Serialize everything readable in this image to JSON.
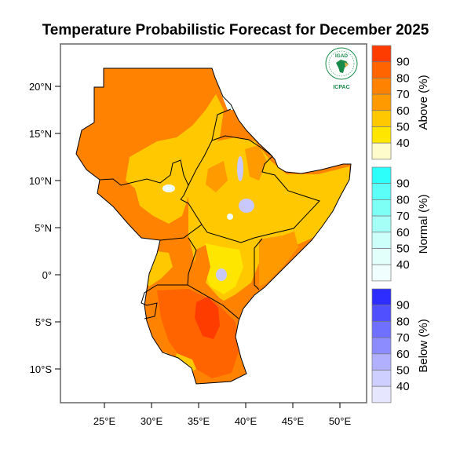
{
  "title": "Temperature Probabilistic Forecast for December 2025",
  "map": {
    "lon_ticks": [
      "25°E",
      "30°E",
      "35°E",
      "40°E",
      "45°E",
      "50°E"
    ],
    "lat_ticks": [
      "20°N",
      "15°N",
      "10°N",
      "5°N",
      "0°",
      "5°S",
      "10°S"
    ],
    "land_color": "#ff8200",
    "border_color": "#000000"
  },
  "logo": {
    "top_text": "IGAD",
    "bottom_text": "ICPAC",
    "color": "#1a8a4a"
  },
  "legend": [
    {
      "title": "Above (%)",
      "labels": [
        "90",
        "80",
        "70",
        "60",
        "50",
        "40"
      ],
      "colors": [
        "#ff3c00",
        "#ff6400",
        "#ff8200",
        "#ff9b00",
        "#ffc800",
        "#ffe600",
        "#fffccc"
      ]
    },
    {
      "title": "Normal (%)",
      "labels": [
        "90",
        "80",
        "70",
        "60",
        "50",
        "40"
      ],
      "colors": [
        "#2dfffa",
        "#5cfff7",
        "#7dfff5",
        "#a6fff6",
        "#ccfffa",
        "#e2fffc",
        "#f0fffe"
      ]
    },
    {
      "title": "Below (%)",
      "labels": [
        "90",
        "80",
        "70",
        "60",
        "50",
        "40"
      ],
      "colors": [
        "#2d2dff",
        "#5050ff",
        "#7070ff",
        "#8c8cff",
        "#b0b0ff",
        "#cfcfff",
        "#e6e6ff"
      ]
    }
  ]
}
